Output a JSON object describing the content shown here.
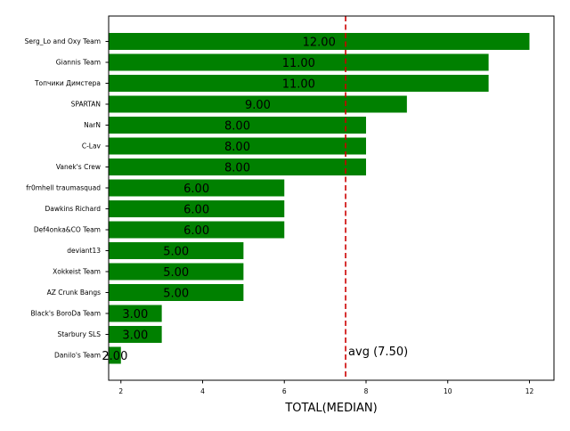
{
  "chart_data": {
    "type": "bar",
    "orientation": "horizontal",
    "categories": [
      "Serg_Lo and Oxy Team",
      "Giannis Team",
      "Топчики Димстера",
      "SPARTAN",
      "NarN",
      "C-Lav",
      "Vanek's Crew",
      "fr0mhell traumasquad",
      "Dawkins Richard",
      "Def4onka&CO Team",
      "deviant13",
      "Xokkeist Team",
      "AZ Crunk Bangs",
      "Black's BoroDa Team",
      "Starbury SLS",
      "Danilo's Team"
    ],
    "values": [
      12,
      11,
      11,
      9,
      8,
      8,
      8,
      6,
      6,
      6,
      5,
      5,
      5,
      3,
      3,
      2
    ],
    "value_labels": [
      "12.00",
      "11.00",
      "11.00",
      "9.00",
      "8.00",
      "8.00",
      "8.00",
      "6.00",
      "6.00",
      "6.00",
      "5.00",
      "5.00",
      "5.00",
      "3.00",
      "3.00",
      "2.00"
    ],
    "bar_color": "#008000",
    "xlabel": "TOTAL(MEDIAN)",
    "ylabel": "",
    "title": "",
    "xlim": [
      1.7,
      12.6
    ],
    "xticks": [
      2,
      4,
      6,
      8,
      10,
      12
    ],
    "xtick_labels": [
      "2",
      "4",
      "6",
      "8",
      "10",
      "12"
    ],
    "reference_line": {
      "value": 7.5,
      "label": "avg (7.50)",
      "color": "#cc0000",
      "style": "dashed"
    },
    "grid": false
  }
}
